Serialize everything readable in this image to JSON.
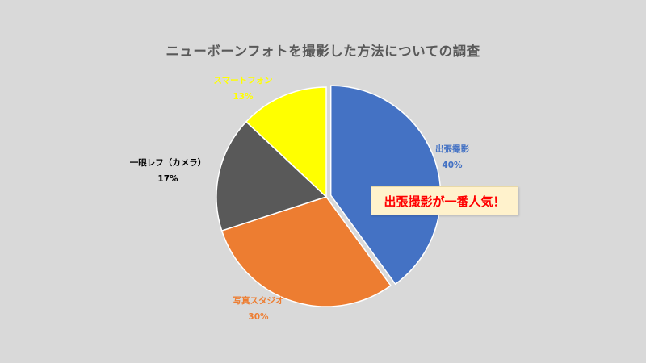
{
  "chart_data": {
    "type": "pie",
    "title": "ニューボーンフォトを撮影した方法についての調査",
    "slices": [
      {
        "label": "出張撮影",
        "value": 40,
        "display": "40%",
        "color": "#4472c4",
        "exploded": true
      },
      {
        "label": "写真スタジオ",
        "value": 30,
        "display": "30%",
        "color": "#ed7d31",
        "exploded": false
      },
      {
        "label": "一眼レフ（カメラ）",
        "value": 17,
        "display": "17%",
        "color": "#595959",
        "exploded": false
      },
      {
        "label": "スマートフォン",
        "value": 13,
        "display": "13%",
        "color": "#ffff00",
        "exploded": false
      }
    ],
    "label_colors": [
      "#4472c4",
      "#ed7d31",
      "#000000",
      "#ffff00"
    ],
    "annotation": "出張撮影が一番人気！"
  }
}
